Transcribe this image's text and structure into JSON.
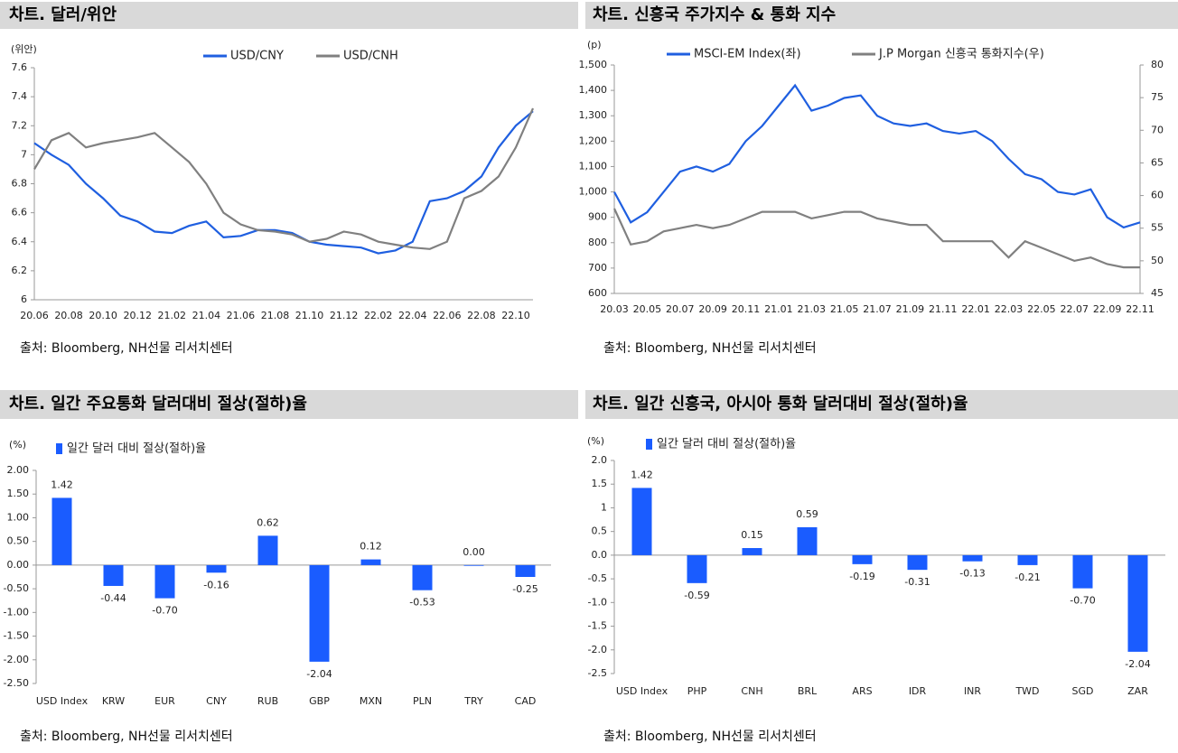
{
  "chart_data": [
    {
      "type": "line",
      "title": "차트. 달러/위안",
      "source": "출처: Bloomberg, NH선물 리서치센터",
      "unit": "(위안)",
      "x": [
        "20.06",
        "20.07",
        "20.08",
        "20.09",
        "20.10",
        "20.11",
        "20.12",
        "21.01",
        "21.02",
        "21.03",
        "21.04",
        "21.05",
        "21.06",
        "21.07",
        "21.08",
        "21.09",
        "21.10",
        "21.11",
        "21.12",
        "22.01",
        "22.02",
        "22.03",
        "22.04",
        "22.05",
        "22.06",
        "22.07",
        "22.08",
        "22.09",
        "22.10",
        "22.11"
      ],
      "xticks": [
        "20.06",
        "20.08",
        "20.10",
        "20.12",
        "21.02",
        "21.04",
        "21.06",
        "21.08",
        "21.10",
        "21.12",
        "22.02",
        "22.04",
        "22.06",
        "22.08",
        "22.10"
      ],
      "series": [
        {
          "name": "USD/CNY",
          "color": "#1f5fe0",
          "values": [
            7.08,
            7.0,
            6.93,
            6.8,
            6.7,
            6.58,
            6.54,
            6.47,
            6.46,
            6.51,
            6.54,
            6.43,
            6.44,
            6.48,
            6.48,
            6.46,
            6.4,
            6.38,
            6.37,
            6.36,
            6.32,
            6.34,
            6.4,
            6.68,
            6.7,
            6.75,
            6.85,
            7.05,
            7.2,
            7.3
          ]
        },
        {
          "name": "USD/CNH",
          "color": "#808080",
          "values": [
            6.9,
            7.1,
            7.15,
            7.05,
            7.08,
            7.1,
            7.12,
            7.15,
            7.05,
            6.95,
            6.8,
            6.6,
            6.52,
            6.48,
            6.47,
            6.45,
            6.4,
            6.42,
            6.47,
            6.45,
            6.4,
            6.38,
            6.36,
            6.35,
            6.4,
            6.7,
            6.75,
            6.85,
            7.05,
            7.32
          ]
        }
      ],
      "ylim": [
        6,
        7.6
      ],
      "yticks": [
        6,
        6.2,
        6.4,
        6.6,
        6.8,
        7,
        7.2,
        7.4,
        7.6
      ]
    },
    {
      "type": "line",
      "title": "차트. 신흥국 주가지수 & 통화 지수",
      "source": "출처: Bloomberg, NH선물 리서치센터",
      "unit": "(p)",
      "x": [
        "20.03",
        "20.04",
        "20.05",
        "20.06",
        "20.07",
        "20.08",
        "20.09",
        "20.10",
        "20.11",
        "20.12",
        "21.01",
        "21.02",
        "21.03",
        "21.04",
        "21.05",
        "21.06",
        "21.07",
        "21.08",
        "21.09",
        "21.10",
        "21.11",
        "21.12",
        "22.01",
        "22.02",
        "22.03",
        "22.04",
        "22.05",
        "22.06",
        "22.07",
        "22.08",
        "22.09",
        "22.10",
        "22.11"
      ],
      "xticks": [
        "20.03",
        "20.05",
        "20.07",
        "20.09",
        "20.11",
        "21.01",
        "21.03",
        "21.05",
        "21.07",
        "21.09",
        "21.11",
        "22.01",
        "22.03",
        "22.05",
        "22.07",
        "22.09",
        "22.11"
      ],
      "series": [
        {
          "name": "MSCI-EM Index(좌)",
          "color": "#1f5fe0",
          "values": [
            1000,
            880,
            920,
            1000,
            1080,
            1100,
            1080,
            1110,
            1200,
            1260,
            1340,
            1420,
            1320,
            1340,
            1370,
            1380,
            1300,
            1270,
            1260,
            1270,
            1240,
            1230,
            1240,
            1200,
            1130,
            1070,
            1050,
            1000,
            990,
            1010,
            900,
            860,
            880
          ]
        },
        {
          "name": "J.P Morgan 신흥국 통화지수(우)",
          "color": "#808080",
          "axis": "y2",
          "values": [
            58,
            52.5,
            53,
            54.5,
            55,
            55.5,
            55,
            55.5,
            56.5,
            57.5,
            57.5,
            57.5,
            56.5,
            57,
            57.5,
            57.5,
            56.5,
            56,
            55.5,
            55.5,
            53,
            53,
            53,
            53,
            50.5,
            53,
            52,
            51,
            50,
            50.5,
            49.5,
            49,
            49
          ]
        }
      ],
      "ylim": [
        600,
        1500
      ],
      "yticks": [
        600,
        700,
        800,
        900,
        {
          "value": 1000,
          "label": "1,000"
        },
        {
          "value": 1100,
          "label": "1,100"
        },
        {
          "value": 1200,
          "label": "1,200"
        },
        {
          "value": 1300,
          "label": "1,300"
        },
        {
          "value": 1400,
          "label": "1,400"
        },
        {
          "value": 1500,
          "label": "1,500"
        }
      ],
      "y2lim": [
        45,
        80
      ],
      "y2ticks": [
        45,
        50,
        55,
        60,
        65,
        70,
        75,
        80
      ]
    },
    {
      "type": "bar",
      "title": "차트. 일간 주요통화 달러대비 절상(절하)율",
      "source": "출처: Bloomberg, NH선물 리서치센터",
      "unit": "(%)",
      "categories": [
        "USD Index",
        "KRW",
        "EUR",
        "CNY",
        "RUB",
        "GBP",
        "MXN",
        "PLN",
        "TRY",
        "CAD"
      ],
      "series": [
        {
          "name": "일간 달러 대비 절상(절하)율",
          "color": "#1a5cff",
          "values": [
            1.42,
            -0.44,
            -0.7,
            -0.16,
            0.62,
            -2.04,
            0.12,
            -0.53,
            0,
            -0.25
          ],
          "value_labels": [
            "1.42",
            "-0.44",
            "-0.70",
            "-0.16",
            "0.62",
            "-2.04",
            "0.12",
            "-0.53",
            "0.00",
            "-0.25"
          ]
        }
      ],
      "ylim": [
        -2.5,
        2
      ],
      "yticks": [
        {
          "value": -2.5,
          "label": "-2.50"
        },
        {
          "value": -2,
          "label": "-2.00"
        },
        {
          "value": -1.5,
          "label": "-1.50"
        },
        {
          "value": -1,
          "label": "-1.00"
        },
        {
          "value": -0.5,
          "label": "-0.50"
        },
        {
          "value": 0,
          "label": "0.00"
        },
        {
          "value": 0.5,
          "label": "0.50"
        },
        {
          "value": 1,
          "label": "1.00"
        },
        {
          "value": 1.5,
          "label": "1.50"
        },
        {
          "value": 2,
          "label": "2.00"
        }
      ]
    },
    {
      "type": "bar",
      "title": "차트. 일간 신흥국, 아시아 통화 달러대비 절상(절하)율",
      "source": "출처: Bloomberg, NH선물 리서치센터",
      "unit": "(%)",
      "categories": [
        "USD Index",
        "PHP",
        "CNH",
        "BRL",
        "ARS",
        "IDR",
        "INR",
        "TWD",
        "SGD",
        "ZAR"
      ],
      "series": [
        {
          "name": "일간 달러 대비 절상(절하)율",
          "color": "#1a5cff",
          "values": [
            1.42,
            -0.59,
            0.15,
            0.59,
            -0.19,
            -0.31,
            -0.13,
            -0.21,
            -0.7,
            -2.04
          ],
          "value_labels": [
            "1.42",
            "-0.59",
            "0.15",
            "0.59",
            "-0.19",
            "-0.31",
            "-0.13",
            "-0.21",
            "-0.70",
            "-2.04"
          ]
        }
      ],
      "ylim": [
        -2.5,
        2
      ],
      "yticks": [
        -2.5,
        {
          "value": -2,
          "label": "-2.0"
        },
        -1.5,
        {
          "value": -1,
          "label": "-1.0"
        },
        -0.5,
        {
          "value": 0,
          "label": "0.0"
        },
        0.5,
        1,
        1.5,
        {
          "value": 2,
          "label": "2.0"
        }
      ]
    }
  ]
}
